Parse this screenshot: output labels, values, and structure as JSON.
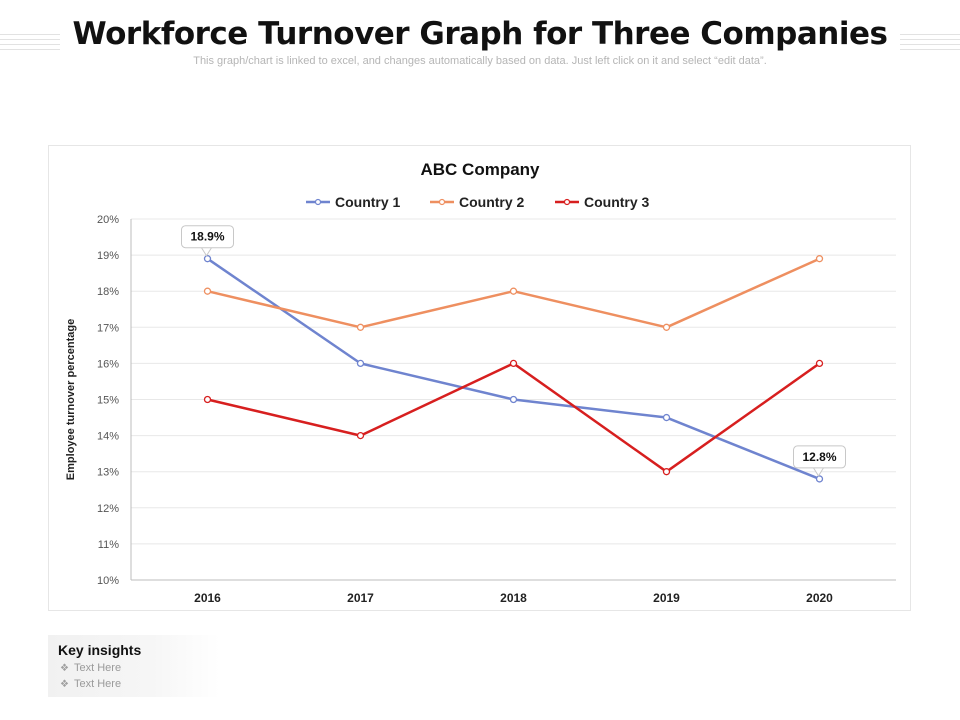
{
  "page": {
    "title": "Workforce Turnover Graph for Three Companies",
    "subtitle": "This graph/chart is linked to excel, and changes automatically based on data. Just left click on it and select “edit data”."
  },
  "chart_data": {
    "type": "line",
    "title": "ABC Company",
    "xlabel": "",
    "ylabel": "Employee  turnover percentage",
    "categories": [
      "2016",
      "2017",
      "2018",
      "2019",
      "2020"
    ],
    "ylim": [
      10,
      20
    ],
    "yticks": [
      10,
      11,
      12,
      13,
      14,
      15,
      16,
      17,
      18,
      19,
      20
    ],
    "ytick_labels": [
      "10%",
      "11%",
      "12%",
      "13%",
      "14%",
      "15%",
      "16%",
      "17%",
      "18%",
      "19%",
      "20%"
    ],
    "grid": true,
    "legend": "top-center",
    "series": [
      {
        "name": "Country 1",
        "color": "#6f84cf",
        "values": [
          18.9,
          16,
          15,
          14.5,
          12.8
        ]
      },
      {
        "name": "Country 2",
        "color": "#ee8f60",
        "values": [
          18,
          17,
          18,
          17,
          18.9
        ]
      },
      {
        "name": "Country 3",
        "color": "#d71f1f",
        "values": [
          15,
          14,
          16,
          13,
          16
        ]
      }
    ],
    "annotations": [
      {
        "series": 0,
        "index": 0,
        "text": "18.9%"
      },
      {
        "series": 0,
        "index": 4,
        "text": "12.8%"
      }
    ]
  },
  "insights": {
    "title": "Key insights",
    "bullet_icon": "diamond-bullet-icon",
    "items": [
      "Text Here",
      "Text Here"
    ]
  }
}
